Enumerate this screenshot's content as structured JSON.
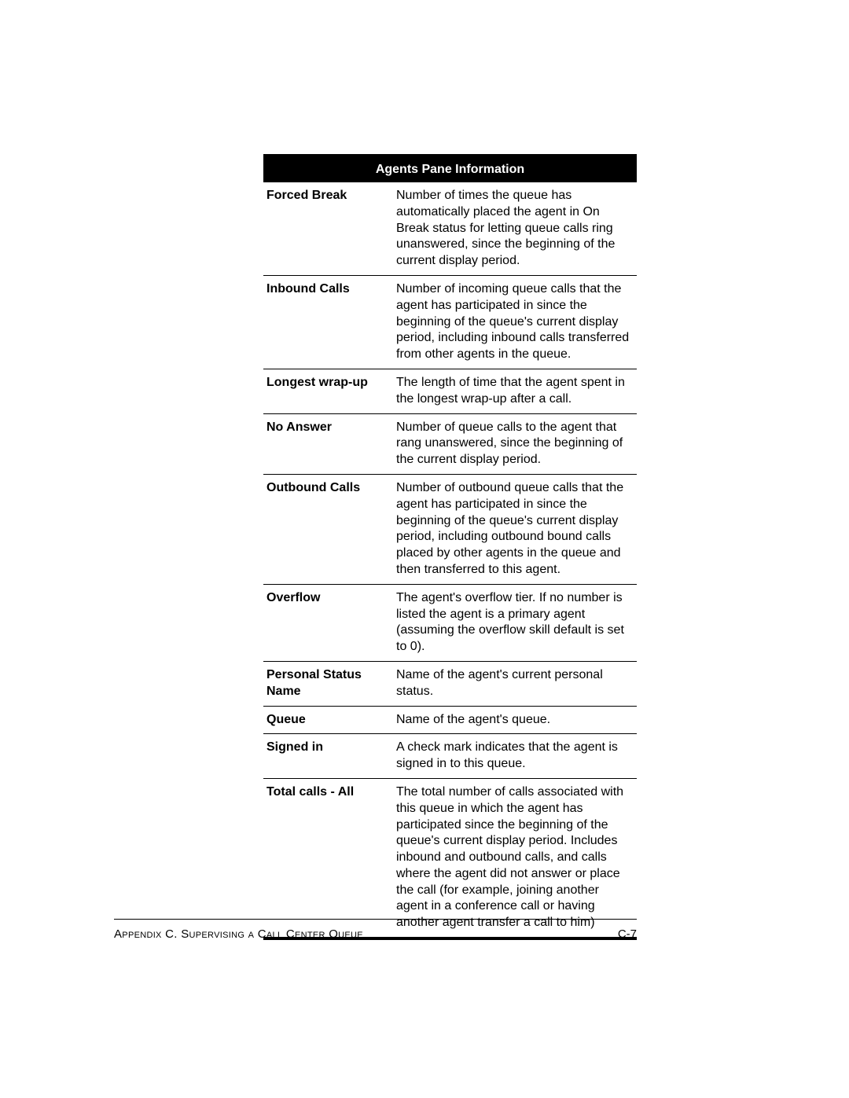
{
  "table": {
    "title": "Agents Pane Information",
    "rows": [
      {
        "term": "Forced Break",
        "desc": "Number of times the queue has automatically placed the agent in On Break status for letting queue calls ring unanswered, since the beginning of the current display period."
      },
      {
        "term": "Inbound Calls",
        "desc": "Number of incoming queue calls that the agent has participated in since the beginning of the queue's current display period, including inbound calls transferred from other agents in the queue."
      },
      {
        "term": "Longest wrap-up",
        "desc": "The length of time that the agent spent in the longest wrap-up after a call."
      },
      {
        "term": "No Answer",
        "desc": "Number of queue calls to the agent that rang unanswered, since the beginning of the current display period."
      },
      {
        "term": "Outbound Calls",
        "desc": "Number of outbound queue calls that the agent has participated in since the beginning of the queue's current display period, including outbound bound calls placed by other agents in the queue and then transferred to this agent."
      },
      {
        "term": "Overflow",
        "desc": "The agent's overflow tier. If no number is listed the agent is a primary agent (assuming the overflow skill default is set to 0)."
      },
      {
        "term": "Personal Status Name",
        "desc": "Name of the agent's current personal status."
      },
      {
        "term": "Queue",
        "desc": "Name of the agent's queue."
      },
      {
        "term": "Signed in",
        "desc": "A check mark indicates that the agent is signed in to this queue."
      },
      {
        "term": "Total calls - All",
        "desc": "The total number of calls associated with this queue in which the agent has participated since the beginning of the queue's current display period. Includes inbound and outbound calls, and calls where the agent did not answer or place the call (for example, joining another agent in a conference call or having another agent transfer a call to him)"
      }
    ]
  },
  "footer": {
    "left": "Appendix C. Supervising a Call Center Queue",
    "right": "C-7"
  }
}
